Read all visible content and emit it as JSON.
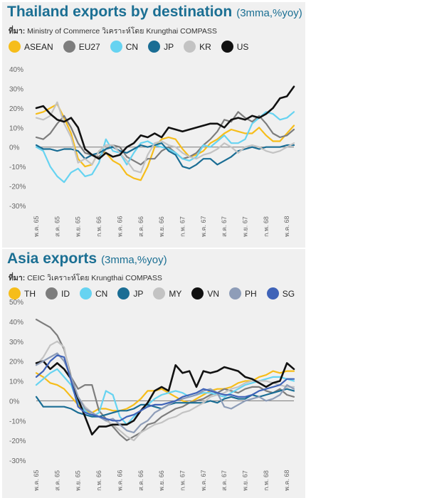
{
  "chart_data": [
    {
      "type": "line",
      "title": "Thailand exports by destination",
      "subtitle": "(3mma,%yoy)",
      "source_prefix": "ที่มา:",
      "source_text": "Ministry of Commerce วิเคราะห์โดย Krungthai COMPASS",
      "xlabel": "",
      "ylabel": "",
      "ylim": [
        -30,
        40
      ],
      "yticks": [
        "40%",
        "30%",
        "20%",
        "10%",
        "0%",
        "-10%",
        "-20%",
        "-30%"
      ],
      "tick_labels": [
        "พ.ค. 65",
        "ส.ค. 65",
        "พ.ย. 65",
        "ก.พ. 66",
        "พ.ค. 66",
        "ส.ค. 66",
        "พ.ย. 66",
        "ก.พ. 67",
        "พ.ค. 67",
        "ส.ค. 67",
        "พ.ย. 67",
        "ก.พ. 68",
        "พ.ค. 68"
      ],
      "tick_index": [
        0,
        3,
        6,
        9,
        12,
        15,
        18,
        21,
        24,
        27,
        30,
        33,
        36
      ],
      "grid": false,
      "legend_position": "top",
      "series": [
        {
          "name": "ASEAN",
          "color": "#f6bd1a",
          "width": 2.2,
          "values": [
            17,
            18,
            20,
            22,
            15,
            7,
            -6,
            -10,
            -9,
            -2,
            -3,
            -7,
            -9,
            -14,
            -16,
            -17,
            -10,
            0,
            4,
            5,
            4,
            -1,
            -5,
            -4,
            -2,
            2,
            4,
            7,
            9,
            8,
            7,
            7,
            10,
            6,
            3,
            3,
            7,
            11
          ]
        },
        {
          "name": "EU27",
          "color": "#7d7d7d",
          "width": 2.2,
          "values": [
            5,
            4,
            7,
            12,
            16,
            10,
            2,
            -3,
            -4,
            -5,
            -1,
            1,
            0,
            -5,
            -7,
            -9,
            -6,
            -6,
            -2,
            0,
            -3,
            -6,
            -5,
            -3,
            1,
            4,
            8,
            14,
            13,
            18,
            15,
            13,
            16,
            12,
            7,
            5,
            6,
            9
          ]
        },
        {
          "name": "CN",
          "color": "#66d3f1",
          "width": 2.2,
          "values": [
            0,
            -2,
            -10,
            -15,
            -18,
            -13,
            -11,
            -15,
            -14,
            -8,
            4,
            -2,
            -3,
            -9,
            -3,
            2,
            3,
            1,
            0,
            -1,
            -3,
            -6,
            -7,
            -5,
            1,
            0,
            3,
            6,
            2,
            2,
            4,
            12,
            15,
            18,
            17,
            14,
            15,
            18
          ]
        },
        {
          "name": "JP",
          "color": "#1a6d94",
          "width": 2.2,
          "values": [
            1,
            -1,
            -1,
            -2,
            -1,
            -1,
            -2,
            -6,
            -4,
            -3,
            -1,
            0,
            -2,
            -3,
            -1,
            1,
            0,
            1,
            2,
            -2,
            -4,
            -10,
            -11,
            -9,
            -6,
            -6,
            -9,
            -7,
            -5,
            -2,
            -1,
            0,
            -1,
            0,
            0,
            0,
            1,
            1
          ]
        },
        {
          "name": "KR",
          "color": "#c3c3c3",
          "width": 2.2,
          "values": [
            15,
            14,
            16,
            23,
            12,
            5,
            -8,
            -6,
            -9,
            -2,
            1,
            1,
            -3,
            -7,
            -12,
            -13,
            -4,
            2,
            3,
            1,
            0,
            -3,
            -5,
            -6,
            -4,
            -3,
            -1,
            2,
            0,
            -3,
            0,
            1,
            0,
            -2,
            -3,
            -2,
            0,
            2
          ]
        },
        {
          "name": "US",
          "color": "#111111",
          "width": 2.6,
          "values": [
            20,
            21,
            17,
            14,
            13,
            15,
            10,
            -1,
            -4,
            -6,
            -3,
            -5,
            -4,
            0,
            2,
            6,
            5,
            7,
            5,
            10,
            9,
            8,
            9,
            10,
            11,
            12,
            12,
            10,
            14,
            15,
            14,
            16,
            15,
            17,
            20,
            25,
            26,
            31
          ]
        }
      ]
    },
    {
      "type": "line",
      "title": "Asia exports",
      "subtitle": "(3mma,%yoy)",
      "source_prefix": "ที่มา:",
      "source_text": "CEIC วิเคราะห์โดย Krungthai COMPASS",
      "xlabel": "",
      "ylabel": "",
      "ylim": [
        -30,
        50
      ],
      "yticks": [
        "50%",
        "40%",
        "30%",
        "20%",
        "10%",
        "0%",
        "-10%",
        "-20%",
        "-30%"
      ],
      "tick_labels": [
        "พ.ค. 65",
        "ส.ค. 65",
        "พ.ย. 65",
        "ก.พ. 66",
        "พ.ค. 66",
        "ส.ค. 66",
        "พ.ย. 66",
        "ก.พ. 67",
        "พ.ค. 67",
        "ส.ค. 67",
        "พ.ย. 67",
        "ก.พ. 68",
        "พ.ค. 68"
      ],
      "tick_index": [
        0,
        3,
        6,
        9,
        12,
        15,
        18,
        21,
        24,
        27,
        30,
        33,
        36
      ],
      "grid": false,
      "legend_position": "top",
      "series": [
        {
          "name": "TH",
          "color": "#f6bd1a",
          "width": 2.2,
          "values": [
            14,
            12,
            9,
            8,
            6,
            2,
            -2,
            -5,
            -6,
            -4,
            -4,
            -5,
            -5,
            -4,
            -2,
            1,
            5,
            5,
            6,
            4,
            2,
            0,
            -1,
            1,
            3,
            5,
            6,
            6,
            7,
            9,
            10,
            10,
            12,
            13,
            15,
            14,
            15,
            15
          ]
        },
        {
          "name": "ID",
          "color": "#7d7d7d",
          "width": 2.2,
          "values": [
            41,
            39,
            37,
            33,
            26,
            12,
            6,
            8,
            8,
            -5,
            -9,
            -13,
            -17,
            -20,
            -18,
            -16,
            -12,
            -11,
            -8,
            -6,
            -4,
            -3,
            -1,
            0,
            1,
            3,
            4,
            6,
            5,
            4,
            6,
            7,
            7,
            5,
            4,
            6,
            3,
            2
          ]
        },
        {
          "name": "CN",
          "color": "#66d3f1",
          "width": 2.2,
          "values": [
            8,
            11,
            14,
            16,
            12,
            8,
            -1,
            -5,
            -8,
            -6,
            5,
            3,
            -8,
            -12,
            -8,
            -5,
            -2,
            1,
            3,
            4,
            5,
            4,
            2,
            3,
            4,
            4,
            3,
            2,
            4,
            6,
            8,
            9,
            10,
            11,
            12,
            12,
            11,
            10
          ]
        },
        {
          "name": "JP",
          "color": "#1a6d94",
          "width": 2.2,
          "values": [
            2,
            -3,
            -3,
            -3,
            -3,
            -4,
            -6,
            -7,
            -8,
            -8,
            -7,
            -6,
            -5,
            -5,
            -4,
            -2,
            -2,
            -3,
            -4,
            -2,
            -1,
            -1,
            -1,
            -1,
            -1,
            0,
            -1,
            1,
            2,
            1,
            1,
            3,
            2,
            3,
            4,
            5,
            6,
            5
          ]
        },
        {
          "name": "MY",
          "color": "#c3c3c3",
          "width": 2.2,
          "values": [
            18,
            22,
            28,
            30,
            27,
            10,
            2,
            -3,
            -6,
            -8,
            -10,
            -12,
            -15,
            -18,
            -20,
            -16,
            -14,
            -12,
            -11,
            -9,
            -8,
            -6,
            -5,
            -3,
            -1,
            2,
            3,
            4,
            6,
            7,
            9,
            10,
            10,
            10,
            9,
            8,
            7,
            7
          ]
        },
        {
          "name": "VN",
          "color": "#111111",
          "width": 2.6,
          "values": [
            19,
            20,
            16,
            19,
            16,
            11,
            1,
            -8,
            -17,
            -13,
            -13,
            -12,
            -12,
            -12,
            -10,
            -5,
            -1,
            5,
            7,
            5,
            18,
            14,
            15,
            7,
            15,
            14,
            15,
            17,
            16,
            15,
            12,
            11,
            9,
            7,
            9,
            10,
            19,
            16
          ]
        },
        {
          "name": "PH",
          "color": "#8e9db8",
          "width": 2.2,
          "values": [
            18,
            20,
            22,
            24,
            20,
            12,
            2,
            -4,
            -6,
            -8,
            -10,
            -9,
            -12,
            -15,
            -16,
            -12,
            -10,
            -6,
            -4,
            -2,
            0,
            1,
            2,
            3,
            5,
            6,
            4,
            -3,
            -4,
            -2,
            0,
            1,
            2,
            0,
            1,
            3,
            8,
            6
          ]
        },
        {
          "name": "SG",
          "color": "#3f63b8",
          "width": 2.2,
          "values": [
            12,
            15,
            20,
            23,
            22,
            10,
            -3,
            -6,
            -7,
            -8,
            -9,
            -10,
            -10,
            -8,
            -7,
            -5,
            -3,
            -2,
            -2,
            -1,
            0,
            2,
            3,
            4,
            6,
            5,
            4,
            3,
            3,
            2,
            2,
            3,
            5,
            6,
            7,
            8,
            11,
            11
          ]
        }
      ]
    }
  ]
}
